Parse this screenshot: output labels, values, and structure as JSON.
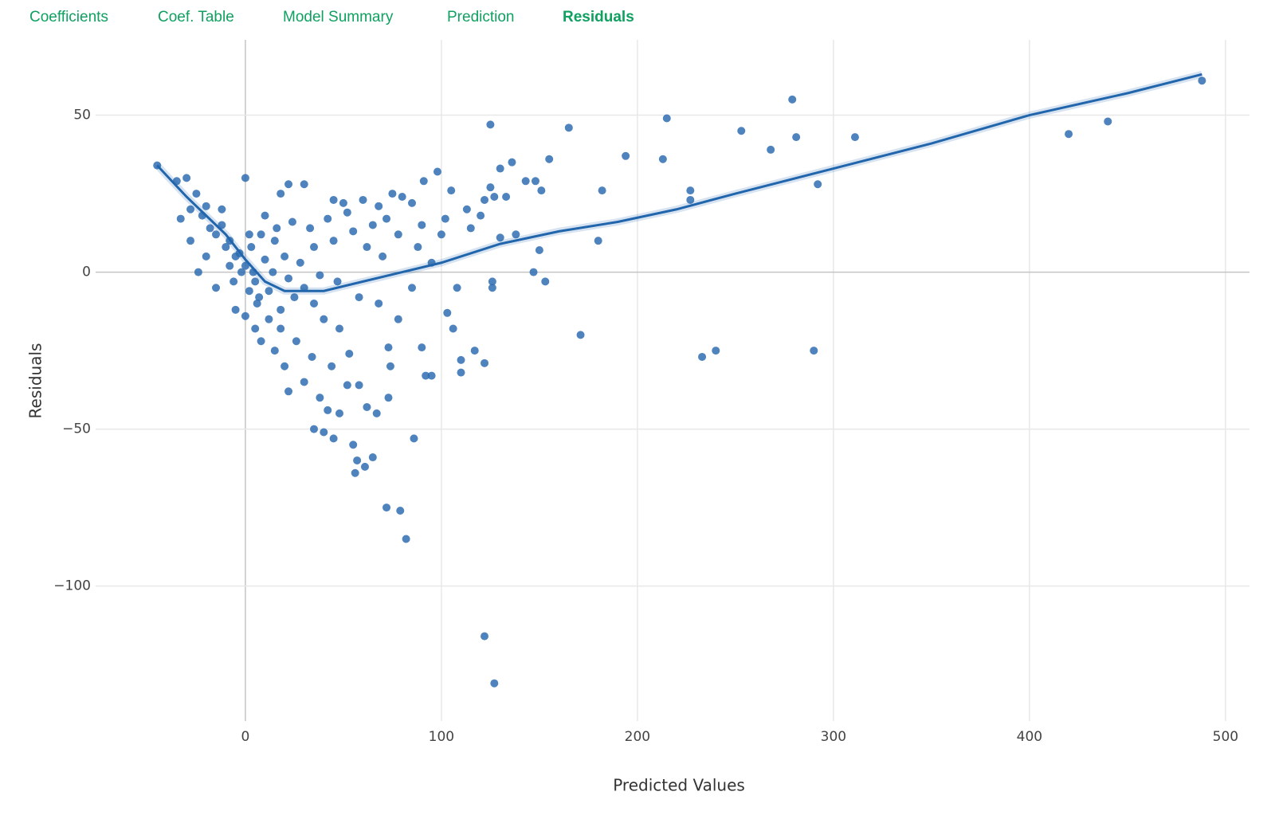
{
  "tabs": [
    "Coefficients",
    "Coef. Table",
    "Model Summary",
    "Prediction",
    "Residuals"
  ],
  "active_tab": 4,
  "chart_data": {
    "type": "scatter",
    "x_label": "Predicted Values",
    "y_label": "Residuals",
    "xlim": [
      -52,
      509
    ],
    "ylim": [
      -143,
      74
    ],
    "xticks": [
      0,
      100,
      200,
      300,
      400,
      500
    ],
    "yticks": [
      {
        "value": -100,
        "label": "−100"
      },
      {
        "value": -50,
        "label": "−50"
      },
      0,
      50
    ],
    "grid": true,
    "series": [
      {
        "color": "#2f6db3",
        "x": [
          -45,
          125,
          165,
          215,
          279,
          253,
          281,
          268,
          311,
          194,
          213,
          155,
          136,
          420,
          440,
          488,
          292,
          227,
          227,
          182,
          180,
          171,
          233,
          240,
          290,
          122,
          127,
          82,
          72,
          79,
          86,
          56,
          61,
          65,
          57,
          55,
          35,
          40,
          45,
          67,
          73,
          74,
          73,
          90,
          92,
          95,
          110,
          110,
          117,
          122,
          106,
          103,
          108,
          126,
          126,
          147,
          153,
          150,
          138,
          130,
          122,
          125,
          130,
          98,
          91,
          105,
          127,
          133,
          143,
          151,
          148,
          113,
          100,
          85,
          75,
          80,
          68,
          60,
          50,
          45,
          30,
          22,
          18,
          0,
          -30,
          -35,
          -25,
          -20,
          -33,
          -28,
          -20,
          -24,
          -15,
          -5,
          0,
          5,
          8,
          15,
          20,
          22,
          30,
          38,
          42,
          48,
          52,
          58,
          62,
          53,
          48,
          40,
          35,
          25,
          18,
          12,
          5,
          0,
          -5,
          -10,
          -15,
          -12,
          -8,
          -3,
          3,
          8,
          15,
          20,
          28,
          35,
          45,
          55,
          62,
          70,
          78,
          88,
          95,
          85,
          78,
          68,
          58,
          47,
          38,
          30,
          22,
          14,
          7,
          2,
          -2,
          -8,
          -18,
          -22,
          10,
          16,
          24,
          33,
          42,
          52,
          65,
          72,
          90,
          102,
          115,
          120,
          -28,
          -12,
          2,
          6,
          12,
          18,
          26,
          34,
          44,
          10,
          4,
          -6
        ],
        "values": [
          34,
          47,
          46,
          49,
          55,
          45,
          43,
          39,
          43,
          37,
          36,
          36,
          35,
          44,
          48,
          61,
          28,
          26,
          23,
          26,
          10,
          -20,
          -27,
          -25,
          -25,
          -116,
          -131,
          -85,
          -75,
          -76,
          -53,
          -64,
          -62,
          -59,
          -60,
          -55,
          -50,
          -51,
          -53,
          -45,
          -40,
          -30,
          -24,
          -24,
          -33,
          -33,
          -32,
          -28,
          -25,
          -29,
          -18,
          -13,
          -5,
          -3,
          -5,
          0,
          -3,
          7,
          12,
          11,
          23,
          27,
          33,
          32,
          29,
          26,
          24,
          24,
          29,
          26,
          29,
          20,
          12,
          22,
          25,
          24,
          21,
          23,
          22,
          23,
          28,
          28,
          25,
          30,
          30,
          29,
          25,
          21,
          17,
          10,
          5,
          0,
          -5,
          -12,
          -14,
          -18,
          -22,
          -25,
          -30,
          -38,
          -35,
          -40,
          -44,
          -45,
          -36,
          -36,
          -43,
          -26,
          -18,
          -15,
          -10,
          -8,
          -12,
          -6,
          -3,
          2,
          5,
          8,
          12,
          15,
          10,
          6,
          8,
          12,
          10,
          5,
          3,
          8,
          10,
          13,
          8,
          5,
          12,
          8,
          3,
          -5,
          -15,
          -10,
          -8,
          -3,
          -1,
          -5,
          -2,
          0,
          -8,
          -6,
          0,
          2,
          14,
          18,
          18,
          14,
          16,
          14,
          17,
          19,
          15,
          17,
          15,
          17,
          14,
          18,
          20,
          20,
          12,
          -10,
          -15,
          -18,
          -22,
          -27,
          -30,
          4,
          0,
          -3
        ]
      }
    ],
    "trend": {
      "color": "#2166ac",
      "x": [
        -45,
        -30,
        -10,
        0,
        10,
        20,
        40,
        60,
        80,
        100,
        130,
        160,
        190,
        220,
        250,
        300,
        350,
        400,
        450,
        488
      ],
      "values": [
        34,
        24,
        12,
        4,
        -3,
        -6,
        -6,
        -3,
        0,
        3,
        9,
        13,
        16,
        20,
        25,
        33,
        41,
        50,
        57,
        63
      ]
    }
  }
}
